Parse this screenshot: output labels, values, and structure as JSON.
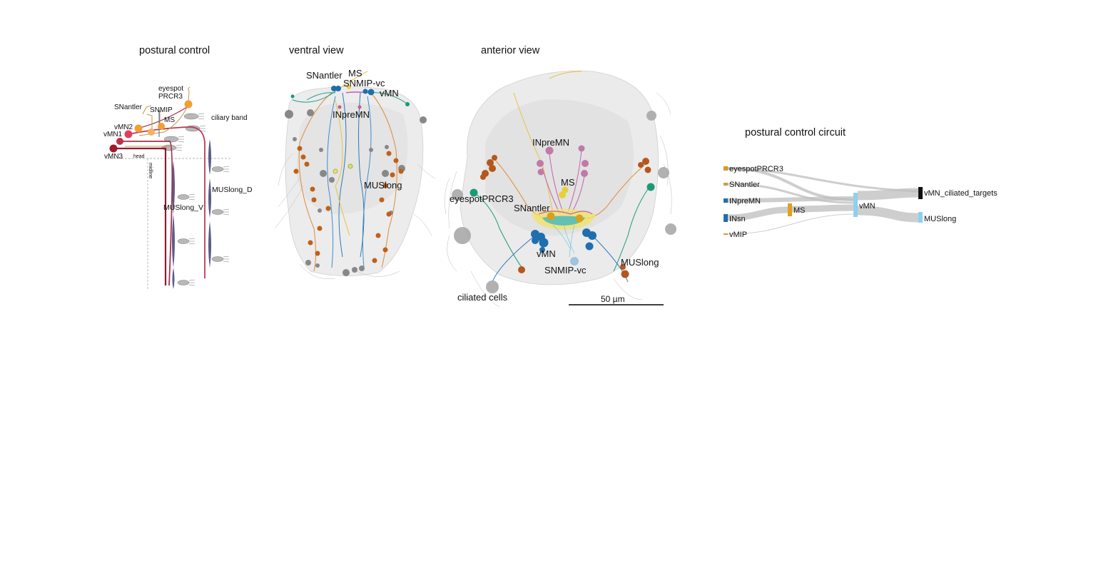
{
  "titles": {
    "schematic": "postural control",
    "ventral": "ventral view",
    "anterior": "anterior view",
    "circuit": "postural control circuit"
  },
  "schematic": {
    "eyespot": "eyespot",
    "prcr3": "PRCR3",
    "ciliary_band": "ciliary band",
    "snantler": "SNantler",
    "snmip": "SNMIP",
    "ms": "MS",
    "vmn2": "vMN2",
    "vmn1": "vMN1",
    "vmn3": "vMN3",
    "head": "head",
    "midline": "midline",
    "muslong_d": "MUSlong_D",
    "muslong_v": "MUSlong_V"
  },
  "ventral": {
    "snantler": "SNantler",
    "ms": "MS",
    "snmip_vc": "SNMIP-vc",
    "vmn": "vMN",
    "inpremn": "INpreMN",
    "muslong": "MUSlong"
  },
  "anterior": {
    "inpremn": "INpreMN",
    "ms": "MS",
    "eyespotprcr3": "eyespotPRCR3",
    "snantler": "SNantler",
    "vmn": "vMN",
    "snmip_vc": "SNMIP-vc",
    "muslong": "MUSlong",
    "ciliated_cells": "ciliated cells",
    "scale": "50 µm"
  },
  "circuit": {
    "nodes": [
      "eyespotPRCR3",
      "SNantler",
      "INpreMN",
      "INsn",
      "vMIP",
      "MS",
      "vMN",
      "vMN_ciliated_targets",
      "MUSlong"
    ]
  },
  "colors": {
    "orange": "#e8a02a",
    "yellow": "#e6cf3a",
    "pink": "#c9589a",
    "darkred": "#9e1b32",
    "teal": "#1a9a78",
    "blue": "#1f6fae",
    "lightblue": "#8fd0f0",
    "brown": "#b5571c",
    "grey": "#8a8a8a",
    "muscle": "#5a5a88"
  }
}
